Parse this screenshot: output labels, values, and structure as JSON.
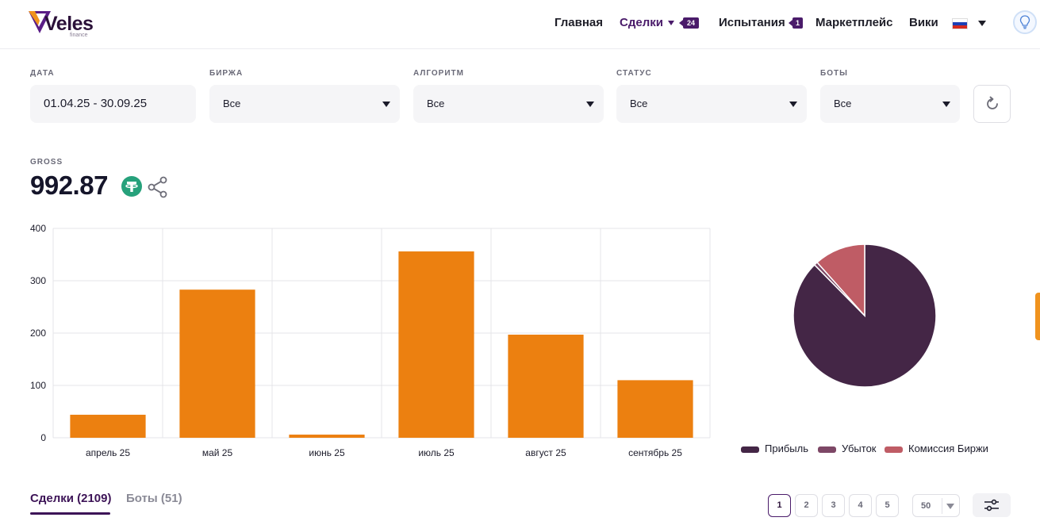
{
  "header": {
    "logo": {
      "name": "Veles",
      "sub": "finance"
    },
    "nav": [
      {
        "label": "Главная"
      },
      {
        "label": "Сделки",
        "badge": "24"
      },
      {
        "label": "Испытания",
        "badge": "1"
      },
      {
        "label": "Маркетплейс"
      },
      {
        "label": "Вики"
      }
    ],
    "language_flag": "ru-flag-icon"
  },
  "filters": [
    {
      "label": "ДАТА",
      "value": "01.04.25 - 30.09.25"
    },
    {
      "label": "БИРЖА",
      "value": "Все"
    },
    {
      "label": "АЛГОРИТМ",
      "value": "Все"
    },
    {
      "label": "СТАТУС",
      "value": "Все"
    },
    {
      "label": "БОТЫ",
      "value": "Все"
    }
  ],
  "gross": {
    "label": "GROSS",
    "value": "992.87",
    "currency_icon": "tether-icon"
  },
  "chart_data": [
    {
      "type": "bar",
      "categories": [
        "апрель 25",
        "май 25",
        "июнь 25",
        "июль 25",
        "август 25",
        "сентябрь 25"
      ],
      "values": [
        44,
        283,
        6,
        356,
        197,
        110
      ],
      "ylim": [
        0,
        400
      ],
      "yticks": [
        0,
        100,
        200,
        300,
        400
      ],
      "grid": true,
      "colors": {
        "bar": "#ec8010",
        "grid": "#e4e4e8"
      }
    },
    {
      "type": "pie",
      "labels": [
        "Прибыль",
        "Убыток",
        "Комиссия Биржи"
      ],
      "values": [
        87.6,
        0.8,
        11.6
      ],
      "colors": [
        "#442646",
        "#7d4766",
        "#bf5c65"
      ],
      "legend": "bottom"
    }
  ],
  "tabs": [
    {
      "label": "Сделки (2109)",
      "active": true
    },
    {
      "label": "Боты (51)",
      "active": false
    }
  ],
  "pagination": {
    "pages": [
      "1",
      "2",
      "3",
      "4",
      "5"
    ],
    "current": "1",
    "per_page": "50"
  },
  "colors": {
    "accent": "#4a1b6a",
    "bar": "#ec8010"
  }
}
